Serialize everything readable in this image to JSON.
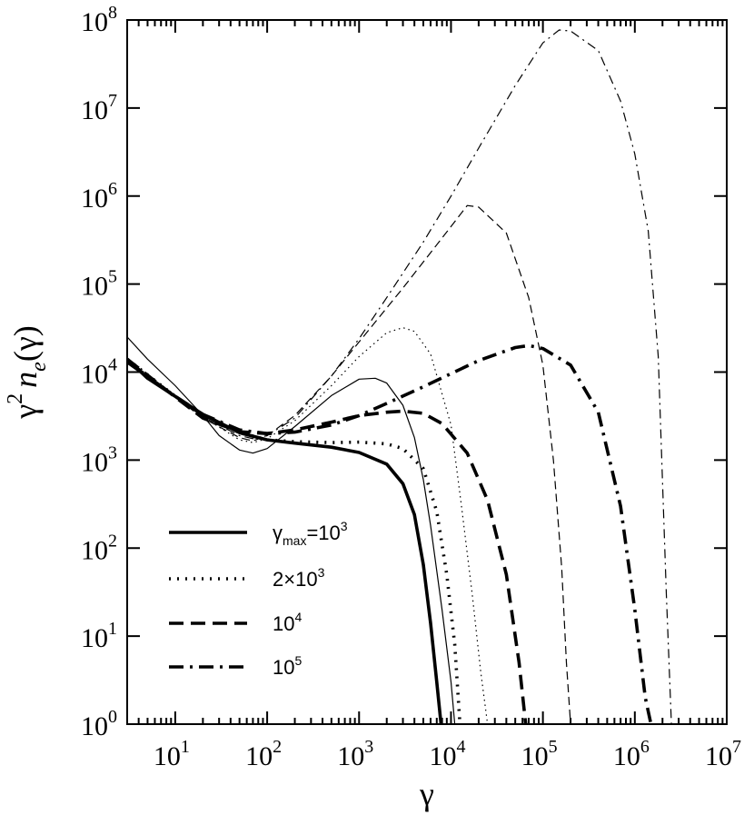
{
  "chart_data": {
    "type": "line",
    "title": "",
    "xlabel": "γ",
    "ylabel": "γ² n_e(γ)",
    "x_scale": "log",
    "y_scale": "log",
    "xlim": [
      3,
      10000000
    ],
    "ylim": [
      1,
      100000000
    ],
    "x_tick_labels": [
      {
        "value": 10,
        "base": "10",
        "exp": "1"
      },
      {
        "value": 100,
        "base": "10",
        "exp": "2"
      },
      {
        "value": 1000,
        "base": "10",
        "exp": "3"
      },
      {
        "value": 10000,
        "base": "10",
        "exp": "4"
      },
      {
        "value": 100000,
        "base": "10",
        "exp": "5"
      },
      {
        "value": 1000000,
        "base": "10",
        "exp": "6"
      },
      {
        "value": 10000000,
        "base": "10",
        "exp": "7"
      }
    ],
    "y_tick_labels": [
      {
        "value": 1,
        "base": "10",
        "exp": "0"
      },
      {
        "value": 10,
        "base": "10",
        "exp": "1"
      },
      {
        "value": 100,
        "base": "10",
        "exp": "2"
      },
      {
        "value": 1000,
        "base": "10",
        "exp": "3"
      },
      {
        "value": 10000,
        "base": "10",
        "exp": "4"
      },
      {
        "value": 100000,
        "base": "10",
        "exp": "5"
      },
      {
        "value": 1000000,
        "base": "10",
        "exp": "6"
      },
      {
        "value": 10000000,
        "base": "10",
        "exp": "7"
      },
      {
        "value": 100000000,
        "base": "10",
        "exp": "8"
      }
    ],
    "grid": false,
    "legend_position": "bottom-left",
    "legend": [
      {
        "style": "solid",
        "main": "γ",
        "sub": "max",
        "mid": "=10",
        "sup": "3"
      },
      {
        "style": "dotted",
        "main": "2×10",
        "sub": "",
        "mid": "",
        "sup": "3"
      },
      {
        "style": "dashed",
        "main": "10",
        "sub": "",
        "mid": "",
        "sup": "4"
      },
      {
        "style": "dashdot",
        "main": "10",
        "sub": "",
        "mid": "",
        "sup": "5"
      }
    ],
    "series": [
      {
        "style": "solid",
        "weight": "thick",
        "points": [
          [
            3,
            14000
          ],
          [
            5,
            8500
          ],
          [
            10,
            5300
          ],
          [
            20,
            3300
          ],
          [
            50,
            2050
          ],
          [
            100,
            1700
          ],
          [
            200,
            1560
          ],
          [
            500,
            1400
          ],
          [
            1000,
            1220
          ],
          [
            2000,
            900
          ],
          [
            3000,
            540
          ],
          [
            4000,
            240
          ],
          [
            5000,
            65
          ],
          [
            6000,
            14
          ],
          [
            7000,
            3
          ],
          [
            7800,
            1
          ]
        ]
      },
      {
        "style": "solid",
        "weight": "thin",
        "points": [
          [
            3,
            25000
          ],
          [
            5,
            14000
          ],
          [
            10,
            7000
          ],
          [
            20,
            3200
          ],
          [
            30,
            1900
          ],
          [
            50,
            1300
          ],
          [
            70,
            1200
          ],
          [
            100,
            1350
          ],
          [
            200,
            2400
          ],
          [
            500,
            5400
          ],
          [
            1000,
            8300
          ],
          [
            1500,
            8500
          ],
          [
            2000,
            7500
          ],
          [
            3000,
            4200
          ],
          [
            4000,
            1800
          ],
          [
            5000,
            600
          ],
          [
            6000,
            180
          ],
          [
            8000,
            20
          ],
          [
            10000,
            3
          ],
          [
            11000,
            1
          ]
        ]
      },
      {
        "style": "dotted",
        "weight": "thick",
        "points": [
          [
            3,
            14000
          ],
          [
            10,
            5300
          ],
          [
            20,
            3300
          ],
          [
            50,
            2050
          ],
          [
            100,
            1700
          ],
          [
            200,
            1620
          ],
          [
            500,
            1580
          ],
          [
            1000,
            1600
          ],
          [
            2000,
            1530
          ],
          [
            3000,
            1350
          ],
          [
            5000,
            800
          ],
          [
            7000,
            260
          ],
          [
            9000,
            50
          ],
          [
            11000,
            8
          ],
          [
            12500,
            1
          ]
        ]
      },
      {
        "style": "dotted",
        "weight": "thin",
        "points": [
          [
            3,
            14000
          ],
          [
            10,
            5300
          ],
          [
            20,
            3100
          ],
          [
            50,
            1700
          ],
          [
            70,
            1580
          ],
          [
            100,
            1750
          ],
          [
            200,
            2800
          ],
          [
            500,
            7000
          ],
          [
            1000,
            15000
          ],
          [
            2000,
            28000
          ],
          [
            3000,
            32000
          ],
          [
            4000,
            29000
          ],
          [
            6000,
            16000
          ],
          [
            10000,
            2500
          ],
          [
            13000,
            300
          ],
          [
            17000,
            30
          ],
          [
            21000,
            4
          ],
          [
            25000,
            1
          ]
        ]
      },
      {
        "style": "dashed",
        "weight": "thick",
        "points": [
          [
            3,
            14000
          ],
          [
            10,
            5200
          ],
          [
            20,
            3000
          ],
          [
            50,
            2100
          ],
          [
            100,
            2000
          ],
          [
            200,
            2200
          ],
          [
            500,
            2700
          ],
          [
            1000,
            3200
          ],
          [
            2000,
            3500
          ],
          [
            3000,
            3600
          ],
          [
            5000,
            3400
          ],
          [
            8000,
            2600
          ],
          [
            15000,
            1200
          ],
          [
            25000,
            350
          ],
          [
            40000,
            50
          ],
          [
            55000,
            5
          ],
          [
            65000,
            1
          ]
        ]
      },
      {
        "style": "dashed",
        "weight": "thin",
        "points": [
          [
            3,
            14000
          ],
          [
            10,
            5200
          ],
          [
            20,
            3000
          ],
          [
            50,
            1800
          ],
          [
            70,
            1650
          ],
          [
            100,
            1900
          ],
          [
            200,
            3200
          ],
          [
            500,
            9000
          ],
          [
            1000,
            22000
          ],
          [
            3000,
            90000
          ],
          [
            10000,
            450000
          ],
          [
            15000,
            780000
          ],
          [
            20000,
            750000
          ],
          [
            40000,
            380000
          ],
          [
            70000,
            70000
          ],
          [
            100000,
            12000
          ],
          [
            130000,
            1000
          ],
          [
            160000,
            60
          ],
          [
            180000,
            5
          ],
          [
            200000,
            1
          ]
        ]
      },
      {
        "style": "dashdot",
        "weight": "thick",
        "points": [
          [
            3,
            13000
          ],
          [
            10,
            5300
          ],
          [
            20,
            3300
          ],
          [
            50,
            2200
          ],
          [
            100,
            2000
          ],
          [
            200,
            2080
          ],
          [
            500,
            2500
          ],
          [
            1000,
            3200
          ],
          [
            2000,
            4400
          ],
          [
            5000,
            6800
          ],
          [
            10000,
            9600
          ],
          [
            20000,
            13500
          ],
          [
            50000,
            19000
          ],
          [
            70000,
            20000
          ],
          [
            100000,
            18500
          ],
          [
            200000,
            12000
          ],
          [
            400000,
            3500
          ],
          [
            700000,
            300
          ],
          [
            1000000,
            20
          ],
          [
            1300000,
            2
          ],
          [
            1500000,
            1
          ]
        ]
      },
      {
        "style": "dashdot",
        "weight": "thin",
        "points": [
          [
            3,
            13000
          ],
          [
            10,
            5200
          ],
          [
            20,
            3100
          ],
          [
            50,
            1900
          ],
          [
            70,
            1750
          ],
          [
            100,
            1900
          ],
          [
            200,
            3000
          ],
          [
            500,
            9000
          ],
          [
            1000,
            24000
          ],
          [
            2000,
            70000
          ],
          [
            5000,
            300000
          ],
          [
            10000,
            1000000
          ],
          [
            20000,
            3500000
          ],
          [
            50000,
            18000000
          ],
          [
            100000,
            55000000
          ],
          [
            150000,
            77000000
          ],
          [
            200000,
            75000000
          ],
          [
            400000,
            45000000
          ],
          [
            700000,
            12000000
          ],
          [
            1000000,
            3000000
          ],
          [
            1400000,
            400000
          ],
          [
            1800000,
            15000
          ],
          [
            2200000,
            30
          ],
          [
            2500000,
            1
          ]
        ]
      }
    ]
  }
}
